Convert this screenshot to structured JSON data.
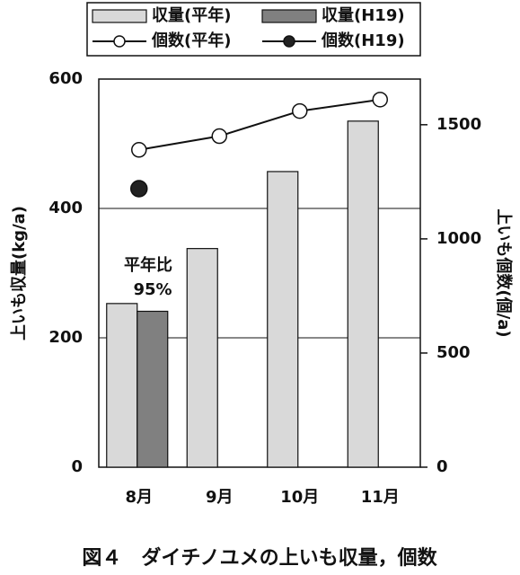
{
  "chart_data": {
    "type": "bar",
    "caption": "図４　ダイチノユメの上いも収量，個数",
    "y_label": "上いも収量(kg/a)",
    "y2_label": "上いも個数(個/a)",
    "categories": [
      "8月",
      "9月",
      "10月",
      "11月"
    ],
    "series": [
      {
        "name": "収量(平年)",
        "type": "bar",
        "color": "#d9d9d9",
        "values": [
          253,
          338,
          457,
          535
        ]
      },
      {
        "name": "収量(H19)",
        "type": "bar",
        "color": "#808080",
        "values": [
          241,
          null,
          null,
          null
        ]
      },
      {
        "name": "個数(平年)",
        "type": "line",
        "axis": "y2",
        "color": "#ffffff",
        "values": [
          1390,
          1450,
          1560,
          1610
        ]
      },
      {
        "name": "個数(H19)",
        "type": "line",
        "axis": "y2",
        "color": "#222222",
        "values": [
          1220,
          null,
          null,
          null
        ]
      }
    ],
    "annotations": [
      "平年比",
      "95%"
    ],
    "ylim": [
      0,
      600
    ],
    "yticks": [
      0,
      200,
      400,
      600
    ],
    "y2lim": [
      0,
      1700
    ],
    "y2ticks": [
      0,
      500,
      1000,
      1500
    ],
    "grid": true
  }
}
